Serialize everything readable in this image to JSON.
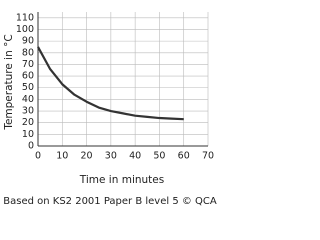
{
  "chart_data": {
    "type": "line",
    "x_label": "Time in minutes",
    "y_label": "Temperature in °C",
    "caption": "Based on KS2 2001 Paper B level 5 © QCA",
    "x": [
      0,
      5,
      10,
      15,
      20,
      25,
      30,
      35,
      40,
      45,
      50,
      55,
      60
    ],
    "series": [
      {
        "name": "Temperature",
        "color": "#333333",
        "values": [
          85,
          66,
          53,
          44,
          38,
          33,
          30,
          28,
          26,
          25,
          24,
          23.5,
          23
        ]
      }
    ],
    "xlim": [
      0,
      70
    ],
    "xticks": [
      0,
      10,
      20,
      30,
      40,
      50,
      60,
      70
    ],
    "ylim": [
      0,
      115
    ],
    "yticks": [
      0,
      10,
      20,
      30,
      40,
      50,
      60,
      70,
      80,
      90,
      100,
      110
    ],
    "grid": true
  }
}
